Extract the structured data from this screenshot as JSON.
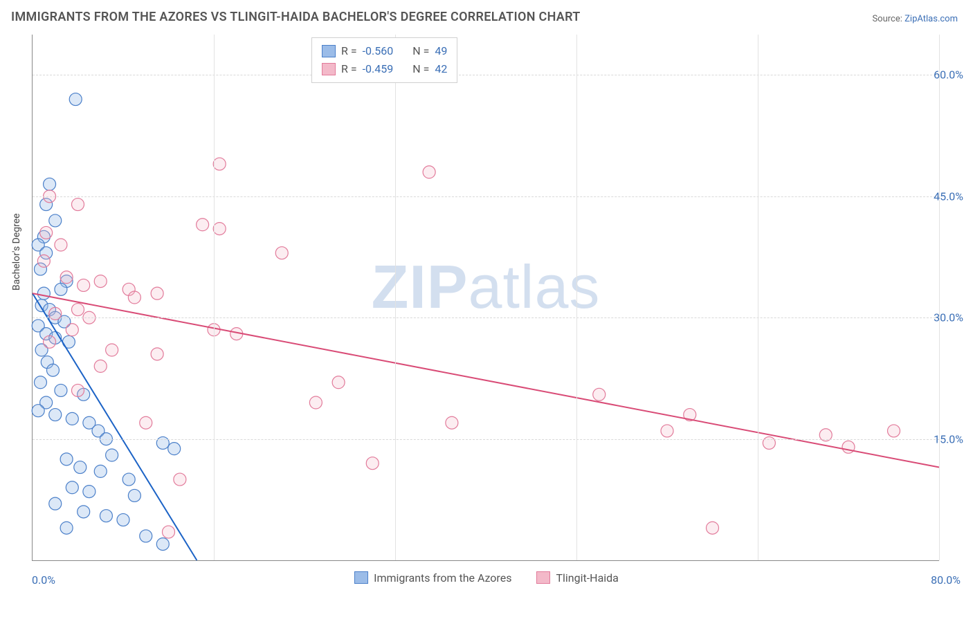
{
  "title": "IMMIGRANTS FROM THE AZORES VS TLINGIT-HAIDA BACHELOR'S DEGREE CORRELATION CHART",
  "source_label": "Source:",
  "source_name": "ZipAtlas.com",
  "watermark_a": "ZIP",
  "watermark_b": "atlas",
  "chart": {
    "type": "scatter",
    "ylabel": "Bachelor's Degree",
    "x_min_label": "0.0%",
    "x_max_label": "80.0%",
    "xlim": [
      0,
      80
    ],
    "ylim": [
      0,
      65
    ],
    "y_ticks": [
      {
        "v": 15,
        "label": "15.0%"
      },
      {
        "v": 30,
        "label": "30.0%"
      },
      {
        "v": 45,
        "label": "45.0%"
      },
      {
        "v": 60,
        "label": "60.0%"
      }
    ],
    "x_grid": [
      16,
      32,
      48,
      64,
      80
    ],
    "marker_radius": 9,
    "background_color": "#ffffff",
    "grid_color": "#d8d8d8",
    "axis_color": "#888888",
    "series": [
      {
        "name": "Immigrants from the Azores",
        "fill": "#9bbce8",
        "stroke": "#4a7fc9",
        "trend_color": "#1c63c6",
        "r_label": "R =",
        "r_value": "-0.560",
        "n_label": "N =",
        "n_value": "49",
        "trend": {
          "x1": 0,
          "y1": 33,
          "x2": 14.5,
          "y2": 0
        },
        "points": [
          [
            3.8,
            57
          ],
          [
            1.5,
            46.5
          ],
          [
            1.2,
            44
          ],
          [
            2,
            42
          ],
          [
            1,
            40
          ],
          [
            0.5,
            39
          ],
          [
            1.2,
            38
          ],
          [
            0.7,
            36
          ],
          [
            3,
            34.5
          ],
          [
            2.5,
            33.5
          ],
          [
            1,
            33
          ],
          [
            0.8,
            31.5
          ],
          [
            1.5,
            31
          ],
          [
            2,
            30
          ],
          [
            2.8,
            29.5
          ],
          [
            0.5,
            29
          ],
          [
            1.2,
            28
          ],
          [
            2,
            27.5
          ],
          [
            3.2,
            27
          ],
          [
            0.8,
            26
          ],
          [
            1.3,
            24.5
          ],
          [
            1.8,
            23.5
          ],
          [
            0.7,
            22
          ],
          [
            2.5,
            21
          ],
          [
            4.5,
            20.5
          ],
          [
            1.2,
            19.5
          ],
          [
            0.5,
            18.5
          ],
          [
            2,
            18
          ],
          [
            3.5,
            17.5
          ],
          [
            5,
            17
          ],
          [
            5.8,
            16
          ],
          [
            6.5,
            15
          ],
          [
            11.5,
            14.5
          ],
          [
            12.5,
            13.8
          ],
          [
            7,
            13
          ],
          [
            3,
            12.5
          ],
          [
            4.2,
            11.5
          ],
          [
            6,
            11
          ],
          [
            8.5,
            10
          ],
          [
            3.5,
            9
          ],
          [
            5,
            8.5
          ],
          [
            9,
            8
          ],
          [
            2,
            7
          ],
          [
            4.5,
            6
          ],
          [
            6.5,
            5.5
          ],
          [
            8,
            5
          ],
          [
            3,
            4
          ],
          [
            10,
            3
          ],
          [
            11.5,
            2
          ]
        ]
      },
      {
        "name": "Tlingit-Haida",
        "fill": "#f3b9c9",
        "stroke": "#e27a9a",
        "trend_color": "#d94b76",
        "r_label": "R =",
        "r_value": "-0.459",
        "n_label": "N =",
        "n_value": "42",
        "trend": {
          "x1": 0,
          "y1": 33,
          "x2": 80,
          "y2": 11.5
        },
        "points": [
          [
            16.5,
            49
          ],
          [
            35,
            48
          ],
          [
            1.5,
            45
          ],
          [
            4,
            44
          ],
          [
            15,
            41.5
          ],
          [
            16.5,
            41
          ],
          [
            1.2,
            40.5
          ],
          [
            2.5,
            39
          ],
          [
            22,
            38
          ],
          [
            1,
            37
          ],
          [
            3,
            35
          ],
          [
            6,
            34.5
          ],
          [
            4.5,
            34
          ],
          [
            8.5,
            33.5
          ],
          [
            11,
            33
          ],
          [
            9,
            32.5
          ],
          [
            4,
            31
          ],
          [
            2,
            30.5
          ],
          [
            5,
            30
          ],
          [
            3.5,
            28.5
          ],
          [
            16,
            28.5
          ],
          [
            18,
            28
          ],
          [
            1.5,
            27
          ],
          [
            7,
            26
          ],
          [
            11,
            25.5
          ],
          [
            6,
            24
          ],
          [
            27,
            22
          ],
          [
            4,
            21
          ],
          [
            50,
            20.5
          ],
          [
            25,
            19.5
          ],
          [
            58,
            18
          ],
          [
            10,
            17
          ],
          [
            37,
            17
          ],
          [
            56,
            16
          ],
          [
            70,
            15.5
          ],
          [
            76,
            16
          ],
          [
            72,
            14
          ],
          [
            65,
            14.5
          ],
          [
            30,
            12
          ],
          [
            13,
            10
          ],
          [
            60,
            4
          ],
          [
            12,
            3.5
          ]
        ]
      }
    ]
  }
}
